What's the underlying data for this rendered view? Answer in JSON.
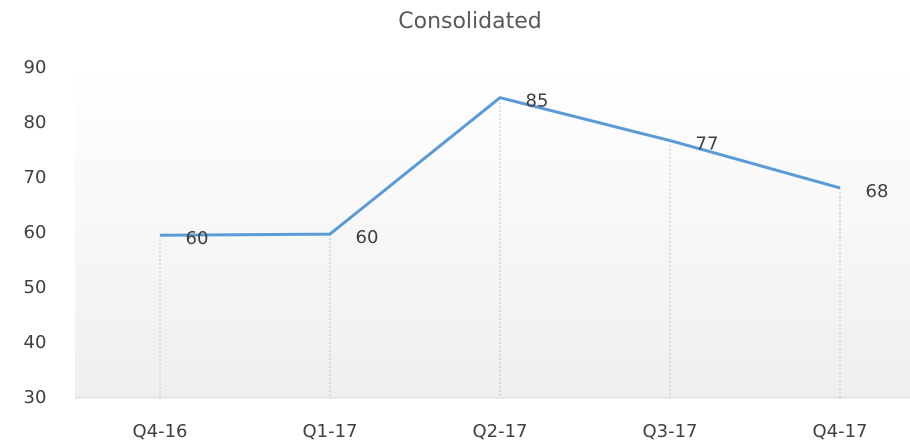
{
  "chart_data": {
    "type": "line",
    "title": "Consolidated",
    "categories": [
      "Q4-16",
      "Q1-17",
      "Q2-17",
      "Q3-17",
      "Q4-17"
    ],
    "series": [
      {
        "name": "Consolidated",
        "color": "#5b9bd5",
        "values": [
          59.6,
          59.8,
          84.6,
          76.8,
          68.2
        ],
        "value_labels": [
          "60",
          "60",
          "85",
          "77",
          "68"
        ]
      }
    ],
    "ylim": [
      30,
      90
    ],
    "yticks": [
      30,
      40,
      50,
      60,
      70,
      80,
      90
    ],
    "grid": false,
    "drop_lines": true
  }
}
